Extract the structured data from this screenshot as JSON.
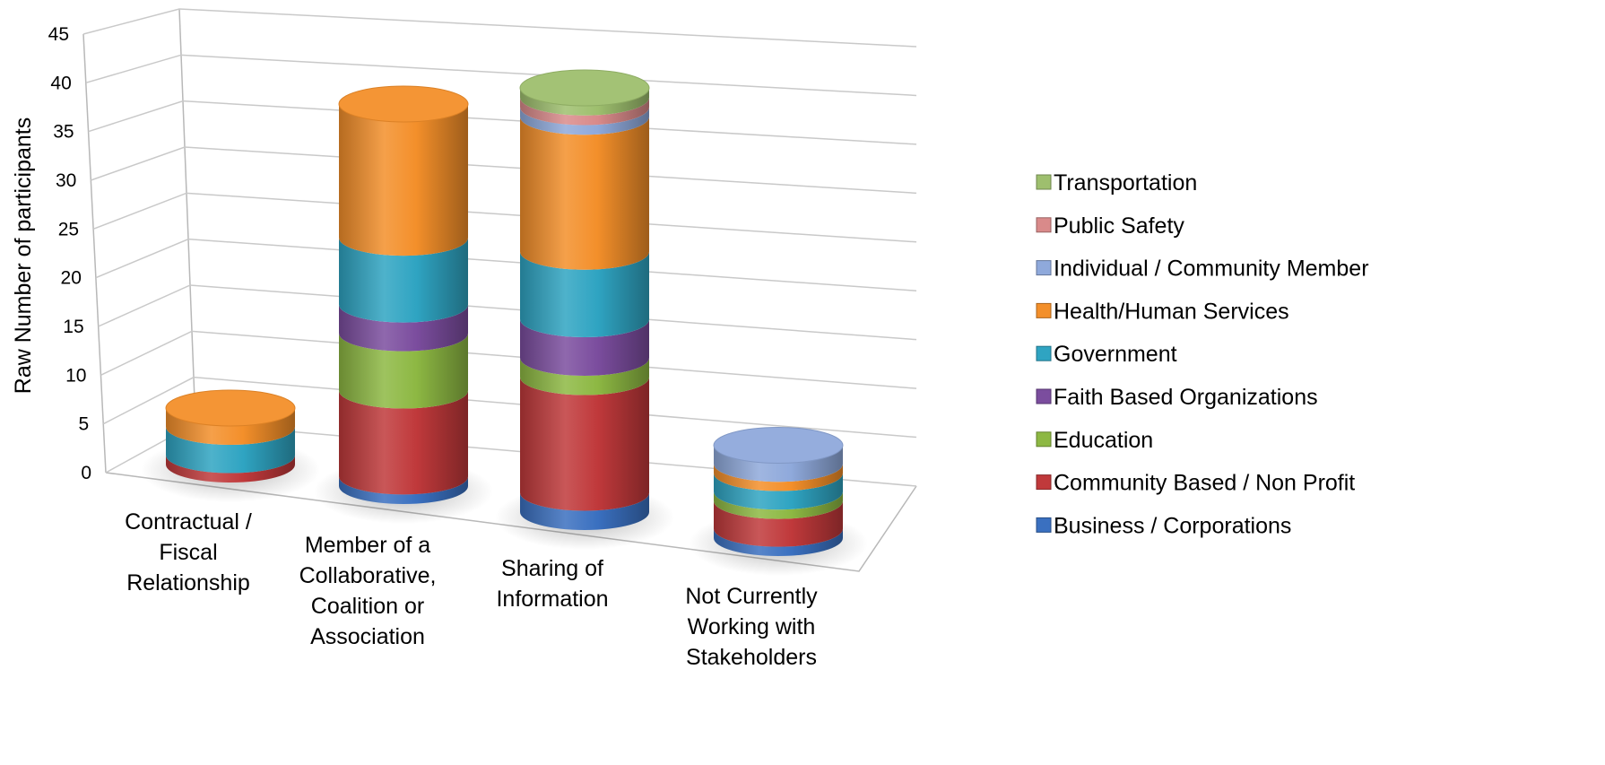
{
  "chart_data": {
    "type": "bar",
    "subtype": "3d-stacked-cylinder",
    "ylabel": "Raw Number of participants",
    "xlabel": "",
    "ylim": [
      0,
      45
    ],
    "yticks": [
      0,
      5,
      10,
      15,
      20,
      25,
      30,
      35,
      40,
      45
    ],
    "grid": true,
    "legend_position": "right",
    "categories": [
      [
        "Contractual /",
        "Fiscal",
        "Relationship"
      ],
      [
        "Member of a",
        "Collaborative,",
        "Coalition or",
        "Association"
      ],
      [
        "Sharing of",
        "Information"
      ],
      [
        "Not Currently",
        "Working with",
        "Stakeholders"
      ]
    ],
    "series": [
      {
        "name": "Business / Corporations",
        "color": "#3a70c0",
        "values": [
          0,
          1,
          2,
          1
        ]
      },
      {
        "name": "Community Based / Non Profit",
        "color": "#c0393b",
        "values": [
          1,
          9,
          12,
          3
        ]
      },
      {
        "name": "Education",
        "color": "#8db843",
        "values": [
          0,
          6,
          2,
          1
        ]
      },
      {
        "name": "Faith Based Organizations",
        "color": "#7b4d9e",
        "values": [
          0,
          3,
          4,
          0
        ]
      },
      {
        "name": "Government",
        "color": "#2fa4c2",
        "values": [
          3,
          7,
          7,
          2
        ]
      },
      {
        "name": "Health/Human Services",
        "color": "#f38f2a",
        "values": [
          2,
          14,
          14,
          1
        ]
      },
      {
        "name": "Individual / Community Member",
        "color": "#8fa9db",
        "values": [
          0,
          0,
          1,
          2
        ]
      },
      {
        "name": "Public Safety",
        "color": "#d98a8a",
        "values": [
          0,
          0,
          1,
          0
        ]
      },
      {
        "name": "Transportation",
        "color": "#9ebf6e",
        "values": [
          0,
          0,
          1,
          0
        ]
      }
    ]
  }
}
